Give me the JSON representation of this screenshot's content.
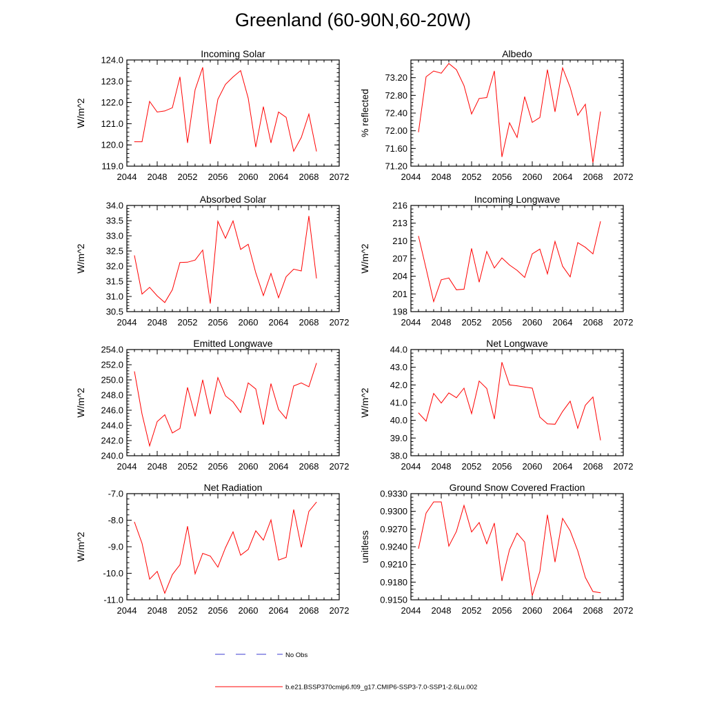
{
  "figure": {
    "title": "Greenland (60-90N,60-20W)",
    "legend": {
      "obs_label": "No Obs",
      "model_label": "b.e21.BSSP370cmip6.f09_g17.CMIP6-SSP3-7.0-SSP1-2.6Lu.002",
      "model_color": "#ff0000",
      "obs_color": "#3a3ad0"
    }
  },
  "chart_data": [
    {
      "type": "line",
      "title": "Incoming Solar",
      "ylabel": "W/m^2",
      "xlim": [
        2044,
        2072
      ],
      "x_ticks": [
        "2044",
        "2048",
        "2052",
        "2056",
        "2060",
        "2064",
        "2068",
        "2072"
      ],
      "ylim": [
        119.0,
        124.0
      ],
      "y_ticks": [
        "119.0",
        "120.0",
        "121.0",
        "122.0",
        "123.0",
        "124.0"
      ],
      "x": [
        2045,
        2046,
        2047,
        2048,
        2049,
        2050,
        2051,
        2052,
        2053,
        2054,
        2055,
        2056,
        2057,
        2058,
        2059,
        2060,
        2061,
        2062,
        2063,
        2064,
        2065,
        2066,
        2067,
        2068,
        2069
      ],
      "series": [
        {
          "values": [
            120.15,
            120.15,
            122.05,
            121.55,
            121.6,
            121.75,
            123.2,
            120.1,
            122.6,
            123.65,
            120.05,
            122.15,
            122.85,
            123.2,
            123.5,
            122.2,
            119.9,
            121.8,
            120.1,
            121.55,
            121.3,
            119.7,
            120.35,
            121.45,
            119.7
          ]
        }
      ]
    },
    {
      "type": "line",
      "title": "Albedo",
      "ylabel": "% reflected",
      "xlim": [
        2044,
        2072
      ],
      "x_ticks": [
        "2044",
        "2048",
        "2052",
        "2056",
        "2060",
        "2064",
        "2068",
        "2072"
      ],
      "ylim": [
        71.2,
        73.6
      ],
      "y_ticks": [
        "71.20",
        "71.60",
        "72.00",
        "72.40",
        "72.80",
        "73.20"
      ],
      "x": [
        2045,
        2046,
        2047,
        2048,
        2049,
        2050,
        2051,
        2052,
        2053,
        2054,
        2055,
        2056,
        2057,
        2058,
        2059,
        2060,
        2061,
        2062,
        2063,
        2064,
        2065,
        2066,
        2067,
        2068,
        2069
      ],
      "series": [
        {
          "values": [
            71.97,
            73.22,
            73.35,
            73.3,
            73.52,
            73.38,
            73.02,
            72.38,
            72.73,
            72.75,
            73.35,
            71.41,
            72.18,
            71.85,
            72.77,
            72.19,
            72.3,
            73.38,
            72.43,
            73.42,
            72.98,
            72.35,
            72.6,
            71.28,
            72.43
          ]
        }
      ]
    },
    {
      "type": "line",
      "title": "Absorbed Solar",
      "ylabel": "W/m^2",
      "xlim": [
        2044,
        2072
      ],
      "x_ticks": [
        "2044",
        "2048",
        "2052",
        "2056",
        "2060",
        "2064",
        "2068",
        "2072"
      ],
      "ylim": [
        30.5,
        34.0
      ],
      "y_ticks": [
        "30.5",
        "31.0",
        "31.5",
        "32.0",
        "32.5",
        "33.0",
        "33.5",
        "34.0"
      ],
      "x": [
        2045,
        2046,
        2047,
        2048,
        2049,
        2050,
        2051,
        2052,
        2053,
        2054,
        2055,
        2056,
        2057,
        2058,
        2059,
        2060,
        2061,
        2062,
        2063,
        2064,
        2065,
        2066,
        2067,
        2068,
        2069
      ],
      "series": [
        {
          "values": [
            32.35,
            31.08,
            31.3,
            31.02,
            30.8,
            31.22,
            32.12,
            32.13,
            32.2,
            32.53,
            30.77,
            33.48,
            32.92,
            33.49,
            32.55,
            32.72,
            31.78,
            31.03,
            31.76,
            30.96,
            31.65,
            31.9,
            31.84,
            33.65,
            31.6
          ]
        }
      ]
    },
    {
      "type": "line",
      "title": "Incoming Longwave",
      "ylabel": "W/m^2",
      "xlim": [
        2044,
        2072
      ],
      "x_ticks": [
        "2044",
        "2048",
        "2052",
        "2056",
        "2060",
        "2064",
        "2068",
        "2072"
      ],
      "ylim": [
        198,
        216
      ],
      "y_ticks": [
        "198",
        "201",
        "204",
        "207",
        "210",
        "213",
        "216"
      ],
      "x": [
        2045,
        2046,
        2047,
        2048,
        2049,
        2050,
        2051,
        2052,
        2053,
        2054,
        2055,
        2056,
        2057,
        2058,
        2059,
        2060,
        2061,
        2062,
        2063,
        2064,
        2065,
        2066,
        2067,
        2068,
        2069
      ],
      "series": [
        {
          "values": [
            210.8,
            205.3,
            199.7,
            203.4,
            203.7,
            201.7,
            201.8,
            208.7,
            203.0,
            208.2,
            205.4,
            207.1,
            205.9,
            205.0,
            203.8,
            207.8,
            208.6,
            204.4,
            209.9,
            205.7,
            203.9,
            209.7,
            208.9,
            207.8,
            213.3
          ]
        }
      ]
    },
    {
      "type": "line",
      "title": "Emitted Longwave",
      "ylabel": "W/m^2",
      "xlim": [
        2044,
        2072
      ],
      "x_ticks": [
        "2044",
        "2048",
        "2052",
        "2056",
        "2060",
        "2064",
        "2068",
        "2072"
      ],
      "ylim": [
        240.0,
        254.0
      ],
      "y_ticks": [
        "240.0",
        "242.0",
        "244.0",
        "246.0",
        "248.0",
        "250.0",
        "252.0",
        "254.0"
      ],
      "x": [
        2045,
        2046,
        2047,
        2048,
        2049,
        2050,
        2051,
        2052,
        2053,
        2054,
        2055,
        2056,
        2057,
        2058,
        2059,
        2060,
        2061,
        2062,
        2063,
        2064,
        2065,
        2066,
        2067,
        2068,
        2069
      ],
      "series": [
        {
          "values": [
            251.1,
            245.5,
            241.3,
            244.5,
            245.4,
            243.0,
            243.6,
            249.0,
            245.2,
            250.0,
            245.5,
            250.3,
            247.9,
            247.1,
            245.7,
            249.6,
            248.8,
            244.1,
            249.5,
            246.1,
            244.9,
            249.2,
            249.6,
            249.1,
            252.2
          ]
        }
      ]
    },
    {
      "type": "line",
      "title": "Net Longwave",
      "ylabel": "W/m^2",
      "xlim": [
        2044,
        2072
      ],
      "x_ticks": [
        "2044",
        "2048",
        "2052",
        "2056",
        "2060",
        "2064",
        "2068",
        "2072"
      ],
      "ylim": [
        38.0,
        44.0
      ],
      "y_ticks": [
        "38.0",
        "39.0",
        "40.0",
        "41.0",
        "42.0",
        "43.0",
        "44.0"
      ],
      "x": [
        2045,
        2046,
        2047,
        2048,
        2049,
        2050,
        2051,
        2052,
        2053,
        2054,
        2055,
        2056,
        2057,
        2058,
        2059,
        2060,
        2061,
        2062,
        2063,
        2064,
        2065,
        2066,
        2067,
        2068,
        2069
      ],
      "series": [
        {
          "values": [
            40.42,
            39.95,
            41.52,
            40.98,
            41.55,
            41.28,
            41.82,
            40.38,
            42.22,
            41.8,
            40.08,
            43.28,
            42.0,
            41.95,
            41.88,
            41.82,
            40.18,
            39.8,
            39.78,
            40.5,
            41.08,
            39.55,
            40.85,
            41.32,
            38.88
          ]
        }
      ]
    },
    {
      "type": "line",
      "title": "Net Radiation",
      "ylabel": "W/m^2",
      "xlim": [
        2044,
        2072
      ],
      "x_ticks": [
        "2044",
        "2048",
        "2052",
        "2056",
        "2060",
        "2064",
        "2068",
        "2072"
      ],
      "ylim": [
        -11.0,
        -7.0
      ],
      "y_ticks": [
        "-11.0",
        "-10.0",
        "-9.0",
        "-8.0",
        "-7.0"
      ],
      "x": [
        2045,
        2046,
        2047,
        2048,
        2049,
        2050,
        2051,
        2052,
        2053,
        2054,
        2055,
        2056,
        2057,
        2058,
        2059,
        2060,
        2061,
        2062,
        2063,
        2064,
        2065,
        2066,
        2067,
        2068,
        2069
      ],
      "series": [
        {
          "values": [
            -8.07,
            -8.87,
            -10.22,
            -9.93,
            -10.75,
            -10.05,
            -9.68,
            -8.23,
            -10.02,
            -9.25,
            -9.35,
            -9.77,
            -9.04,
            -8.44,
            -9.32,
            -9.1,
            -8.4,
            -8.75,
            -7.99,
            -9.5,
            -9.4,
            -7.6,
            -9.02,
            -7.67,
            -7.32
          ]
        }
      ]
    },
    {
      "type": "line",
      "title": "Ground Snow Covered Fraction",
      "ylabel": "unitless",
      "xlim": [
        2044,
        2072
      ],
      "x_ticks": [
        "2044",
        "2048",
        "2052",
        "2056",
        "2060",
        "2064",
        "2068",
        "2072"
      ],
      "ylim": [
        0.915,
        0.933
      ],
      "y_ticks": [
        "0.9150",
        "0.9180",
        "0.9210",
        "0.9240",
        "0.9270",
        "0.9300",
        "0.9330"
      ],
      "x": [
        2045,
        2046,
        2047,
        2048,
        2049,
        2050,
        2051,
        2052,
        2053,
        2054,
        2055,
        2056,
        2057,
        2058,
        2059,
        2060,
        2061,
        2062,
        2063,
        2064,
        2065,
        2066,
        2067,
        2068,
        2069
      ],
      "series": [
        {
          "values": [
            0.9237,
            0.9297,
            0.9316,
            0.9316,
            0.9241,
            0.9266,
            0.931,
            0.9265,
            0.9281,
            0.9245,
            0.928,
            0.9182,
            0.9235,
            0.9263,
            0.9248,
            0.9157,
            0.9198,
            0.9294,
            0.9214,
            0.9288,
            0.9267,
            0.9233,
            0.9188,
            0.9164,
            0.9162
          ]
        }
      ]
    }
  ]
}
